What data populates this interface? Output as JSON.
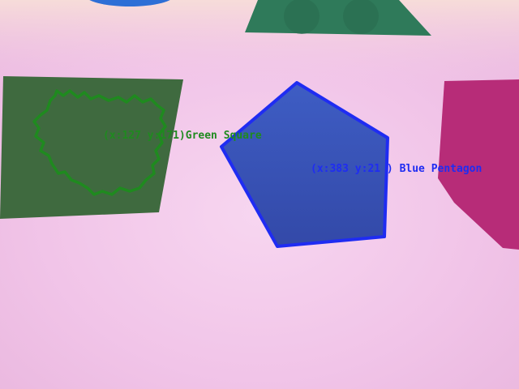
{
  "scene": {
    "background_color": "#f2c8ea",
    "detections": [
      {
        "label": "(x:127 y:171)Green Square",
        "outline_color": "#1f8a1f",
        "text_color": "#1f8a1f"
      },
      {
        "label": "(x:383 y:21 ) Blue Pentagon",
        "outline_color": "#1f2cf2",
        "text_color": "#1f2cf2"
      }
    ],
    "objects": [
      {
        "name": "dark-green-square",
        "color": "#3f6a3f"
      },
      {
        "name": "blue-pentagon",
        "color": "#3a54b8"
      },
      {
        "name": "teal-trapezoid",
        "color": "#2f7a5a"
      },
      {
        "name": "magenta-shape",
        "color": "#b72c78"
      },
      {
        "name": "blue-disc",
        "color": "#2d6fd6"
      }
    ]
  }
}
